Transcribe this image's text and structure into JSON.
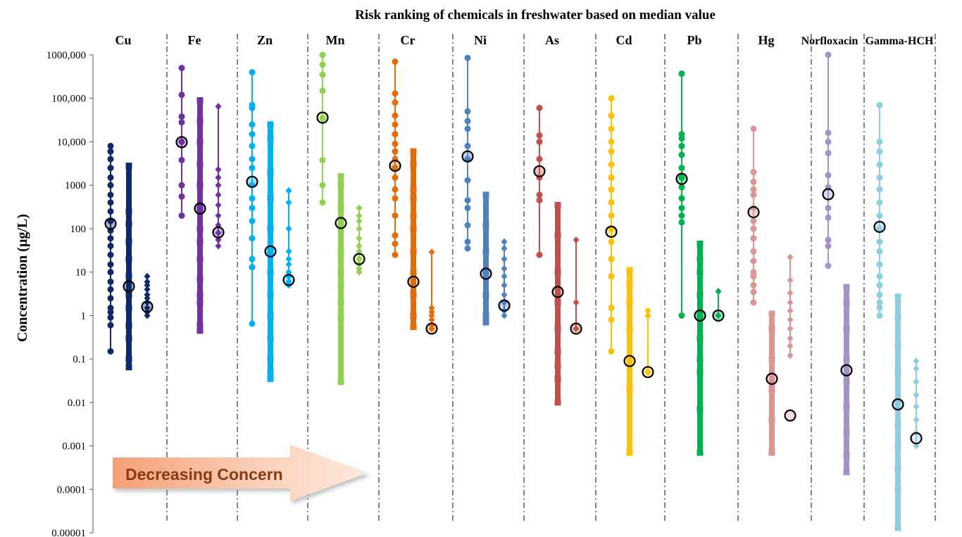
{
  "chart_data": {
    "type": "scatter",
    "title": "Risk ranking of chemicals in freshwater based on median value",
    "ylabel": "Concentration (µg/L)",
    "yscale": "log",
    "ylim": [
      1e-05,
      1000000
    ],
    "yticks": [
      {
        "value": 1000000,
        "label": "1000,000"
      },
      {
        "value": 100000,
        "label": "100,000"
      },
      {
        "value": 10000,
        "label": "10,000"
      },
      {
        "value": 1000,
        "label": "1000"
      },
      {
        "value": 100,
        "label": "100"
      },
      {
        "value": 10,
        "label": "10"
      },
      {
        "value": 1,
        "label": "1"
      },
      {
        "value": 0.1,
        "label": "0.1"
      },
      {
        "value": 0.01,
        "label": "0.01"
      },
      {
        "value": 0.001,
        "label": "0.001"
      },
      {
        "value": 0.0001,
        "label": "0.0001"
      },
      {
        "value": 1e-05,
        "label": "0.00001"
      }
    ],
    "annotation": "Decreasing Concern",
    "groups": [
      {
        "name": "Cu",
        "color": "#0c2a6b",
        "series": [
          {
            "marker": "circle",
            "median": 130,
            "values": [
              0.15,
              0.6,
              0.9,
              1.2,
              1.5,
              2.5,
              4,
              6,
              10,
              15,
              25,
              40,
              60,
              90,
              150,
              250,
              400,
              600,
              1000,
              1500,
              2500,
              4000,
              6000,
              8000
            ]
          },
          {
            "marker": "square",
            "median": 4.7,
            "values": [
              0.065,
              0.1,
              0.3,
              0.6,
              1.5,
              3,
              8,
              20,
              50,
              130,
              250,
              2800
            ]
          },
          {
            "marker": "diamond",
            "median": 1.6,
            "values": [
              1,
              1.2,
              1.5,
              2,
              2.5,
              3,
              4,
              5,
              6,
              8
            ]
          }
        ]
      },
      {
        "name": "Fe",
        "color": "#7030a0",
        "series": [
          {
            "marker": "circle",
            "median": 9800,
            "values": [
              200,
              550,
              1000,
              3800,
              10000,
              28000,
              38000,
              120000,
              500000
            ]
          },
          {
            "marker": "square",
            "median": 290,
            "values": [
              0.45,
              0.6,
              2,
              3,
              7,
              20,
              50,
              100,
              300,
              1000,
              3000,
              10000,
              30000,
              90000
            ]
          },
          {
            "marker": "diamond",
            "median": 82,
            "values": [
              40,
              55,
              80,
              120,
              200,
              350,
              600,
              1000,
              1500,
              2300,
              65000
            ]
          }
        ]
      },
      {
        "name": "Zn",
        "color": "#00b0f0",
        "series": [
          {
            "marker": "circle",
            "median": 1200,
            "values": [
              0.65,
              13,
              20,
              60,
              150,
              300,
              500,
              1000,
              2500,
              4000,
              8000,
              15000,
              25000,
              60000,
              70000,
              400000
            ]
          },
          {
            "marker": "square",
            "median": 30,
            "values": [
              0.035,
              0.05,
              0.1,
              0.3,
              1,
              3,
              10,
              30,
              100,
              500,
              2000,
              12000,
              25000
            ]
          },
          {
            "marker": "diamond",
            "median": 6.6,
            "values": [
              5,
              6,
              8,
              10,
              15,
              20,
              30,
              100,
              400,
              750
            ]
          }
        ]
      },
      {
        "name": "Mn",
        "color": "#92d050",
        "series": [
          {
            "marker": "circle",
            "median": 36000,
            "values": [
              400,
              1000,
              3800,
              35000,
              150000,
              350000,
              600000,
              1000000
            ]
          },
          {
            "marker": "square",
            "median": 135,
            "values": [
              0.03,
              0.9,
              2,
              5,
              10,
              30,
              100,
              300,
              1000,
              1600
            ]
          },
          {
            "marker": "diamond",
            "median": 20,
            "values": [
              10,
              12,
              15,
              20,
              30,
              40,
              60,
              100,
              150,
              200,
              300
            ]
          }
        ]
      },
      {
        "name": "Cr",
        "color": "#e36c0a",
        "series": [
          {
            "marker": "circle",
            "median": 2800,
            "values": [
              25,
              45,
              70,
              200,
              500,
              800,
              1500,
              2500,
              4000,
              6000,
              9000,
              15000,
              25000,
              40000,
              80000,
              130000,
              700000
            ]
          },
          {
            "marker": "square",
            "median": 6,
            "values": [
              0.55,
              1,
              3,
              10,
              30,
              100,
              200,
              500,
              800,
              3000,
              6000
            ]
          },
          {
            "marker": "diamond",
            "median": 0.5,
            "values": [
              0.5,
              0.6,
              0.8,
              1,
              1.2,
              1.5,
              29
            ]
          }
        ]
      },
      {
        "name": "Ni",
        "color": "#4f81bd",
        "series": [
          {
            "marker": "circle",
            "median": 4600,
            "values": [
              35,
              50,
              120,
              300,
              450,
              1300,
              4000,
              8000,
              20000,
              30000,
              50000,
              850000
            ]
          },
          {
            "marker": "square",
            "median": 9.2,
            "values": [
              0.7,
              1,
              3,
              10,
              30,
              120,
              600
            ]
          },
          {
            "marker": "diamond",
            "median": 1.7,
            "values": [
              1,
              1.3,
              2,
              3,
              5,
              8,
              12,
              20,
              35,
              50
            ]
          }
        ]
      },
      {
        "name": "As",
        "color": "#c0504d",
        "series": [
          {
            "marker": "circle",
            "median": 2100,
            "values": [
              25,
              450,
              600,
              1500,
              4000,
              10000,
              14000,
              60000
            ]
          },
          {
            "marker": "square",
            "median": 3.5,
            "values": [
              0.01,
              0.035,
              0.07,
              0.15,
              0.5,
              2,
              10,
              70,
              350
            ]
          },
          {
            "marker": "diamond",
            "median": 0.5,
            "values": [
              0.5,
              2,
              55
            ]
          }
        ]
      },
      {
        "name": "Cd",
        "color": "#ffc000",
        "series": [
          {
            "marker": "circle",
            "median": 85,
            "values": [
              0.15,
              0.8,
              1.5,
              8,
              20,
              50,
              100,
              200,
              400,
              800,
              1500,
              3000,
              6000,
              10000,
              20000,
              40000,
              100000
            ]
          },
          {
            "marker": "square",
            "median": 0.09,
            "values": [
              0.0007,
              0.02,
              0.1,
              0.5,
              2,
              5,
              11
            ]
          },
          {
            "marker": "diamond",
            "median": 0.05,
            "values": [
              0.05,
              1,
              1.3
            ]
          }
        ]
      },
      {
        "name": "Pb",
        "color": "#00b050",
        "series": [
          {
            "marker": "circle",
            "median": 1400,
            "values": [
              1,
              140,
              200,
              300,
              500,
              900,
              1500,
              2500,
              5000,
              8000,
              12000,
              15000,
              370000
            ]
          },
          {
            "marker": "square",
            "median": 1,
            "values": [
              0.0007,
              0.007,
              0.05,
              0.1,
              0.3,
              1,
              3,
              10,
              20,
              45
            ]
          },
          {
            "marker": "diamond",
            "median": 1,
            "values": [
              1,
              3.6
            ]
          }
        ]
      },
      {
        "name": "Hg",
        "color": "#d99694",
        "series": [
          {
            "marker": "circle",
            "median": 240,
            "values": [
              2,
              3.5,
              5,
              8,
              10,
              18,
              30,
              60,
              100,
              150,
              300,
              600,
              800,
              1200,
              2000,
              20000
            ]
          },
          {
            "marker": "square",
            "median": 0.035,
            "values": [
              0.0007,
              0.004,
              0.02,
              0.1,
              0.5,
              1.1
            ]
          },
          {
            "marker": "diamond",
            "median": 0.005,
            "values": [
              0.12,
              0.2,
              0.3,
              0.5,
              0.8,
              1.3,
              2,
              3.3,
              6.5,
              22
            ]
          }
        ]
      },
      {
        "name": "Norfloxacin",
        "color": "#a593c5",
        "series": [
          {
            "marker": "circle",
            "median": 620,
            "values": [
              14,
              40,
              55,
              180,
              300,
              900,
              1700,
              5500,
              10000,
              16000,
              1000000
            ]
          },
          {
            "marker": "square",
            "median": 0.055,
            "values": [
              0.00025,
              0.0006,
              0.002,
              0.008,
              0.03,
              0.1,
              0.5,
              2,
              4.5
            ]
          }
        ]
      },
      {
        "name": "Gamma-HCH",
        "color": "#8fcde0",
        "series": [
          {
            "marker": "circle",
            "median": 110,
            "values": [
              1,
              1.5,
              2,
              3,
              5,
              8,
              15,
              30,
              50,
              100,
              200,
              400,
              800,
              1500,
              3000,
              6000,
              10000,
              70000
            ]
          },
          {
            "marker": "square",
            "median": 0.009,
            "values": [
              1.3e-05,
              0.0001,
              0.0003,
              0.001,
              0.003,
              0.01,
              0.05,
              0.2,
              0.9,
              2.7
            ]
          },
          {
            "marker": "diamond",
            "median": 0.0015,
            "values": [
              0.001,
              0.002,
              0.004,
              0.008,
              0.015,
              0.03,
              0.06,
              0.09
            ]
          }
        ]
      }
    ]
  }
}
